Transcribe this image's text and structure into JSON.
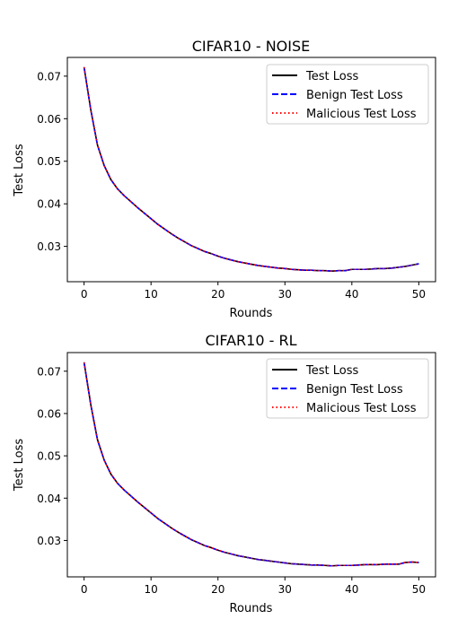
{
  "chart_data": [
    {
      "type": "line",
      "title": "CIFAR10 - NOISE",
      "xlabel": "Rounds",
      "ylabel": "Test Loss",
      "xlim": [
        -2.5,
        52.5
      ],
      "ylim": [
        0.0217,
        0.0744
      ],
      "xticks": [
        0,
        10,
        20,
        30,
        40,
        50
      ],
      "yticks": [
        0.03,
        0.04,
        0.05,
        0.06,
        0.07
      ],
      "xtick_labels": [
        "0",
        "10",
        "20",
        "30",
        "40",
        "50"
      ],
      "ytick_labels": [
        "0.03",
        "0.04",
        "0.05",
        "0.06",
        "0.07"
      ],
      "grid": false,
      "legend_position": "top-right",
      "x": [
        0,
        1,
        2,
        3,
        4,
        5,
        6,
        7,
        8,
        9,
        10,
        11,
        12,
        13,
        14,
        15,
        16,
        17,
        18,
        19,
        20,
        21,
        22,
        23,
        24,
        25,
        26,
        27,
        28,
        29,
        30,
        31,
        32,
        33,
        34,
        35,
        36,
        37,
        38,
        39,
        40,
        41,
        42,
        43,
        44,
        45,
        46,
        47,
        48,
        49,
        50
      ],
      "series": [
        {
          "name": "Test Loss",
          "color": "#000000",
          "dash": "solid",
          "values": [
            0.0721,
            0.0621,
            0.0538,
            0.049,
            0.0457,
            0.0435,
            0.0419,
            0.0405,
            0.0391,
            0.0378,
            0.0365,
            0.0352,
            0.0341,
            0.033,
            0.032,
            0.0311,
            0.0302,
            0.0295,
            0.0288,
            0.0283,
            0.0277,
            0.0272,
            0.0268,
            0.0264,
            0.0261,
            0.0258,
            0.0255,
            0.0253,
            0.0251,
            0.0249,
            0.0248,
            0.0246,
            0.0245,
            0.0244,
            0.0244,
            0.0243,
            0.0243,
            0.0242,
            0.0243,
            0.0243,
            0.0246,
            0.0246,
            0.0246,
            0.0247,
            0.0248,
            0.0248,
            0.0249,
            0.0251,
            0.0253,
            0.0256,
            0.0259
          ]
        },
        {
          "name": "Benign Test Loss",
          "color": "#0000ff",
          "dash": "dashed",
          "values": [
            0.0721,
            0.0621,
            0.0538,
            0.049,
            0.0457,
            0.0435,
            0.0419,
            0.0405,
            0.0391,
            0.0378,
            0.0365,
            0.0352,
            0.0341,
            0.033,
            0.032,
            0.0311,
            0.0302,
            0.0295,
            0.0288,
            0.0283,
            0.0277,
            0.0272,
            0.0268,
            0.0264,
            0.0261,
            0.0258,
            0.0255,
            0.0253,
            0.0251,
            0.0249,
            0.0248,
            0.0246,
            0.0245,
            0.0244,
            0.0244,
            0.0243,
            0.0243,
            0.0242,
            0.0243,
            0.0243,
            0.0246,
            0.0246,
            0.0246,
            0.0247,
            0.0248,
            0.0248,
            0.0249,
            0.0251,
            0.0253,
            0.0256,
            0.0259
          ]
        },
        {
          "name": "Malicious Test Loss",
          "color": "#ff0000",
          "dash": "dotted",
          "values": [
            0.0721,
            0.0621,
            0.0538,
            0.049,
            0.0457,
            0.0435,
            0.0419,
            0.0405,
            0.0391,
            0.0378,
            0.0365,
            0.0352,
            0.0341,
            0.033,
            0.032,
            0.0311,
            0.0302,
            0.0295,
            0.0288,
            0.0283,
            0.0277,
            0.0272,
            0.0268,
            0.0264,
            0.0261,
            0.0258,
            0.0255,
            0.0253,
            0.0251,
            0.0249,
            0.0248,
            0.0246,
            0.0245,
            0.0244,
            0.0244,
            0.0243,
            0.0243,
            0.0242,
            0.0243,
            0.0243,
            0.0246,
            0.0246,
            0.0246,
            0.0247,
            0.0248,
            0.0248,
            0.0249,
            0.0251,
            0.0253,
            0.0256,
            0.0259
          ]
        }
      ]
    },
    {
      "type": "line",
      "title": "CIFAR10 - RL",
      "xlabel": "Rounds",
      "ylabel": "Test Loss",
      "xlim": [
        -2.5,
        52.5
      ],
      "ylim": [
        0.0214,
        0.0744
      ],
      "xticks": [
        0,
        10,
        20,
        30,
        40,
        50
      ],
      "yticks": [
        0.03,
        0.04,
        0.05,
        0.06,
        0.07
      ],
      "xtick_labels": [
        "0",
        "10",
        "20",
        "30",
        "40",
        "50"
      ],
      "ytick_labels": [
        "0.03",
        "0.04",
        "0.05",
        "0.06",
        "0.07"
      ],
      "grid": false,
      "legend_position": "top-right",
      "x": [
        0,
        1,
        2,
        3,
        4,
        5,
        6,
        7,
        8,
        9,
        10,
        11,
        12,
        13,
        14,
        15,
        16,
        17,
        18,
        19,
        20,
        21,
        22,
        23,
        24,
        25,
        26,
        27,
        28,
        29,
        30,
        31,
        32,
        33,
        34,
        35,
        36,
        37,
        38,
        39,
        40,
        41,
        42,
        43,
        44,
        45,
        46,
        47,
        48,
        49,
        50
      ],
      "series": [
        {
          "name": "Test Loss",
          "color": "#000000",
          "dash": "solid",
          "values": [
            0.0721,
            0.0621,
            0.0538,
            0.049,
            0.0457,
            0.0435,
            0.0419,
            0.0405,
            0.0391,
            0.0378,
            0.0365,
            0.0352,
            0.0341,
            0.033,
            0.032,
            0.0311,
            0.0302,
            0.0295,
            0.0288,
            0.0283,
            0.0277,
            0.0272,
            0.0268,
            0.0264,
            0.0261,
            0.0258,
            0.0255,
            0.0253,
            0.0251,
            0.0249,
            0.0247,
            0.0245,
            0.0244,
            0.0243,
            0.0242,
            0.0242,
            0.0241,
            0.024,
            0.0241,
            0.0241,
            0.0241,
            0.0242,
            0.0243,
            0.0243,
            0.0243,
            0.0244,
            0.0244,
            0.0244,
            0.0248,
            0.0249,
            0.0248
          ]
        },
        {
          "name": "Benign Test Loss",
          "color": "#0000ff",
          "dash": "dashed",
          "values": [
            0.0721,
            0.0621,
            0.0538,
            0.049,
            0.0457,
            0.0435,
            0.0419,
            0.0405,
            0.0391,
            0.0378,
            0.0365,
            0.0352,
            0.0341,
            0.033,
            0.032,
            0.0311,
            0.0302,
            0.0295,
            0.0288,
            0.0283,
            0.0277,
            0.0272,
            0.0268,
            0.0264,
            0.0261,
            0.0258,
            0.0255,
            0.0253,
            0.0251,
            0.0249,
            0.0247,
            0.0245,
            0.0244,
            0.0243,
            0.0242,
            0.0242,
            0.0241,
            0.024,
            0.0241,
            0.0241,
            0.0241,
            0.0242,
            0.0243,
            0.0243,
            0.0243,
            0.0244,
            0.0244,
            0.0244,
            0.0248,
            0.0249,
            0.0248
          ]
        },
        {
          "name": "Malicious Test Loss",
          "color": "#ff0000",
          "dash": "dotted",
          "values": [
            0.0721,
            0.0621,
            0.0538,
            0.049,
            0.0457,
            0.0435,
            0.0419,
            0.0405,
            0.0391,
            0.0378,
            0.0365,
            0.0352,
            0.0341,
            0.033,
            0.032,
            0.0311,
            0.0302,
            0.0295,
            0.0288,
            0.0283,
            0.0277,
            0.0272,
            0.0268,
            0.0264,
            0.0261,
            0.0258,
            0.0255,
            0.0253,
            0.0251,
            0.0249,
            0.0247,
            0.0245,
            0.0244,
            0.0243,
            0.0242,
            0.0242,
            0.0241,
            0.024,
            0.0241,
            0.0241,
            0.0241,
            0.0242,
            0.0243,
            0.0243,
            0.0243,
            0.0244,
            0.0244,
            0.0244,
            0.0248,
            0.0249,
            0.0248
          ]
        }
      ]
    }
  ]
}
